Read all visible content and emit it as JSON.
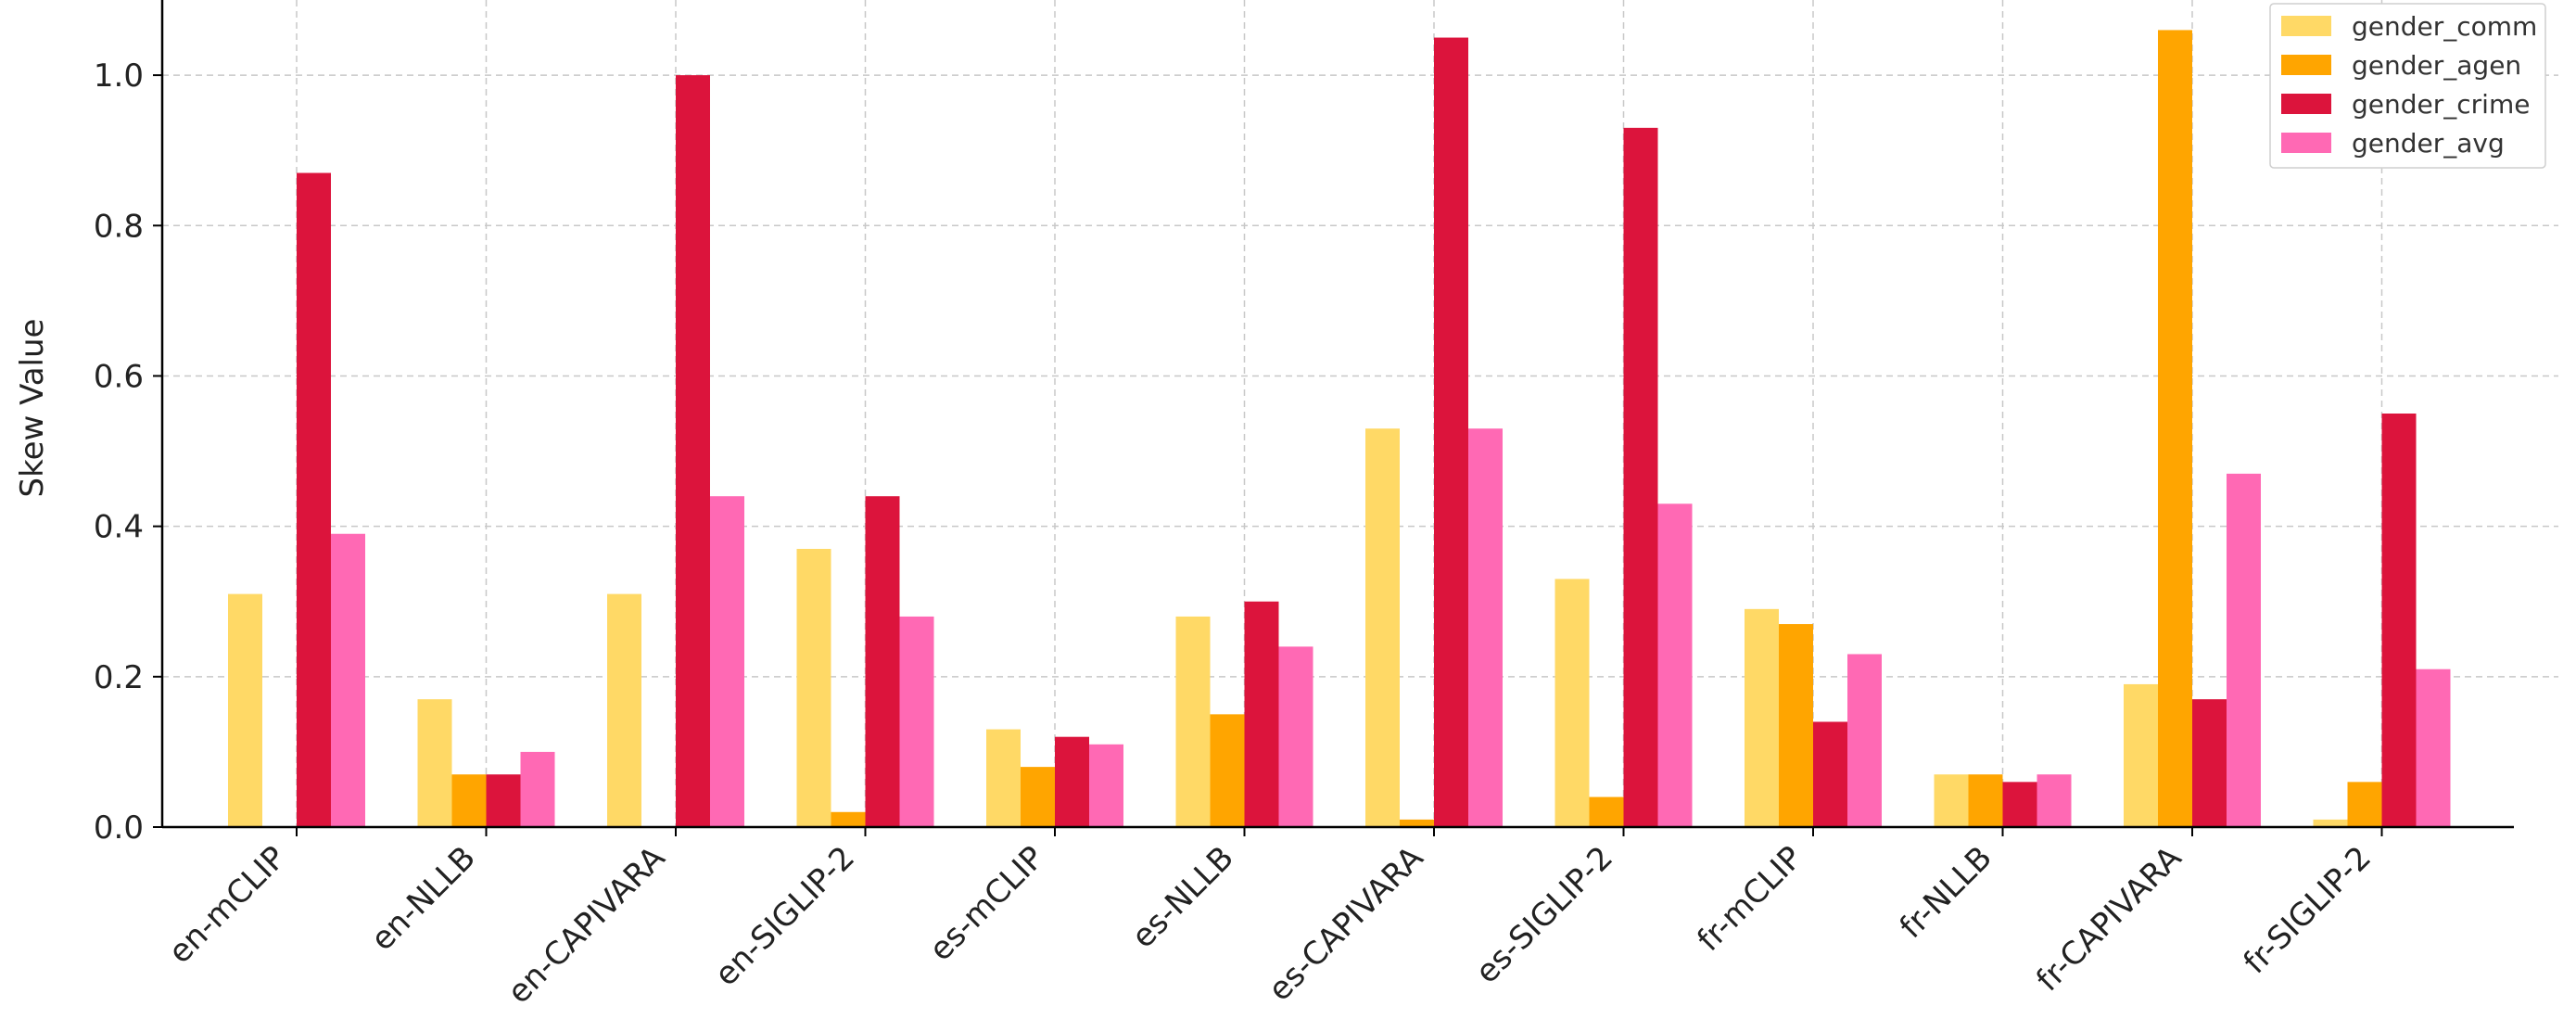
{
  "chart_data": {
    "type": "bar",
    "title": "",
    "xlabel": "",
    "ylabel": "Skew Value",
    "ylim": [
      0,
      1.1
    ],
    "yticks": [
      "0.0",
      "0.2",
      "0.4",
      "0.6",
      "0.8",
      "1.0"
    ],
    "grid": true,
    "legend_position": "top-right",
    "categories": [
      "en-mCLIP",
      "en-NLLB",
      "en-CAPIVARA",
      "en-SIGLIP-2",
      "es-mCLIP",
      "es-NLLB",
      "es-CAPIVARA",
      "es-SIGLIP-2",
      "fr-mCLIP",
      "fr-NLLB",
      "fr-CAPIVARA",
      "fr-SIGLIP-2"
    ],
    "series": [
      {
        "name": "gender_comm",
        "color": "#FFD966",
        "values": [
          0.31,
          0.17,
          0.31,
          0.37,
          0.13,
          0.28,
          0.53,
          0.33,
          0.29,
          0.07,
          0.19,
          0.01
        ]
      },
      {
        "name": "gender_agen",
        "color": "#FFA500",
        "values": [
          0.0,
          0.07,
          0.0,
          0.02,
          0.08,
          0.15,
          0.01,
          0.04,
          0.27,
          0.07,
          1.06,
          0.06
        ]
      },
      {
        "name": "gender_crime",
        "color": "#DC143C",
        "values": [
          0.87,
          0.07,
          1.0,
          0.44,
          0.12,
          0.3,
          1.05,
          0.93,
          0.14,
          0.06,
          0.17,
          0.55
        ]
      },
      {
        "name": "gender_avg",
        "color": "#FF69B4",
        "values": [
          0.39,
          0.1,
          0.44,
          0.28,
          0.11,
          0.24,
          0.53,
          0.43,
          0.23,
          0.07,
          0.47,
          0.21
        ]
      }
    ]
  }
}
